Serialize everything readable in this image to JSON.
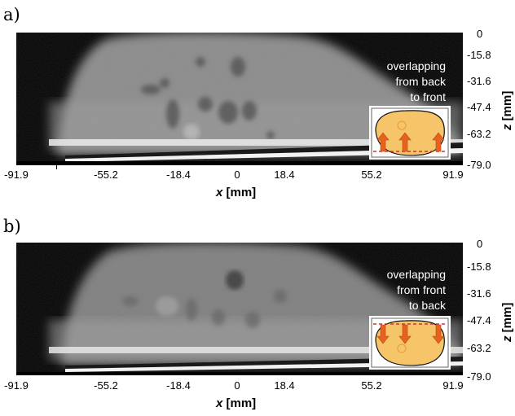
{
  "panels": [
    {
      "label": "a)",
      "overlay_lines": [
        "overlapping",
        "from back",
        "to front"
      ],
      "arrow_direction": "up"
    },
    {
      "label": "b)",
      "overlay_lines": [
        "overlapping",
        "from front",
        "to back"
      ],
      "arrow_direction": "down"
    }
  ],
  "x_ticks": [
    "-91.9",
    "-55.2",
    "-18.4",
    "0",
    "18.4",
    "55.2",
    "91.9"
  ],
  "z_ticks": [
    "0",
    "-15.8",
    "-31.6",
    "-47.4",
    "-63.2",
    "-79.0"
  ],
  "x_axis_label_var": "x",
  "x_axis_label_unit": "[mm]",
  "z_axis_label_var": "z",
  "z_axis_label_unit": "[mm]",
  "colors": {
    "phantom_fill": "#f6c56a",
    "arrow": "#e8621f",
    "dashed_line": "#d0342c",
    "image_background": "#000000"
  }
}
